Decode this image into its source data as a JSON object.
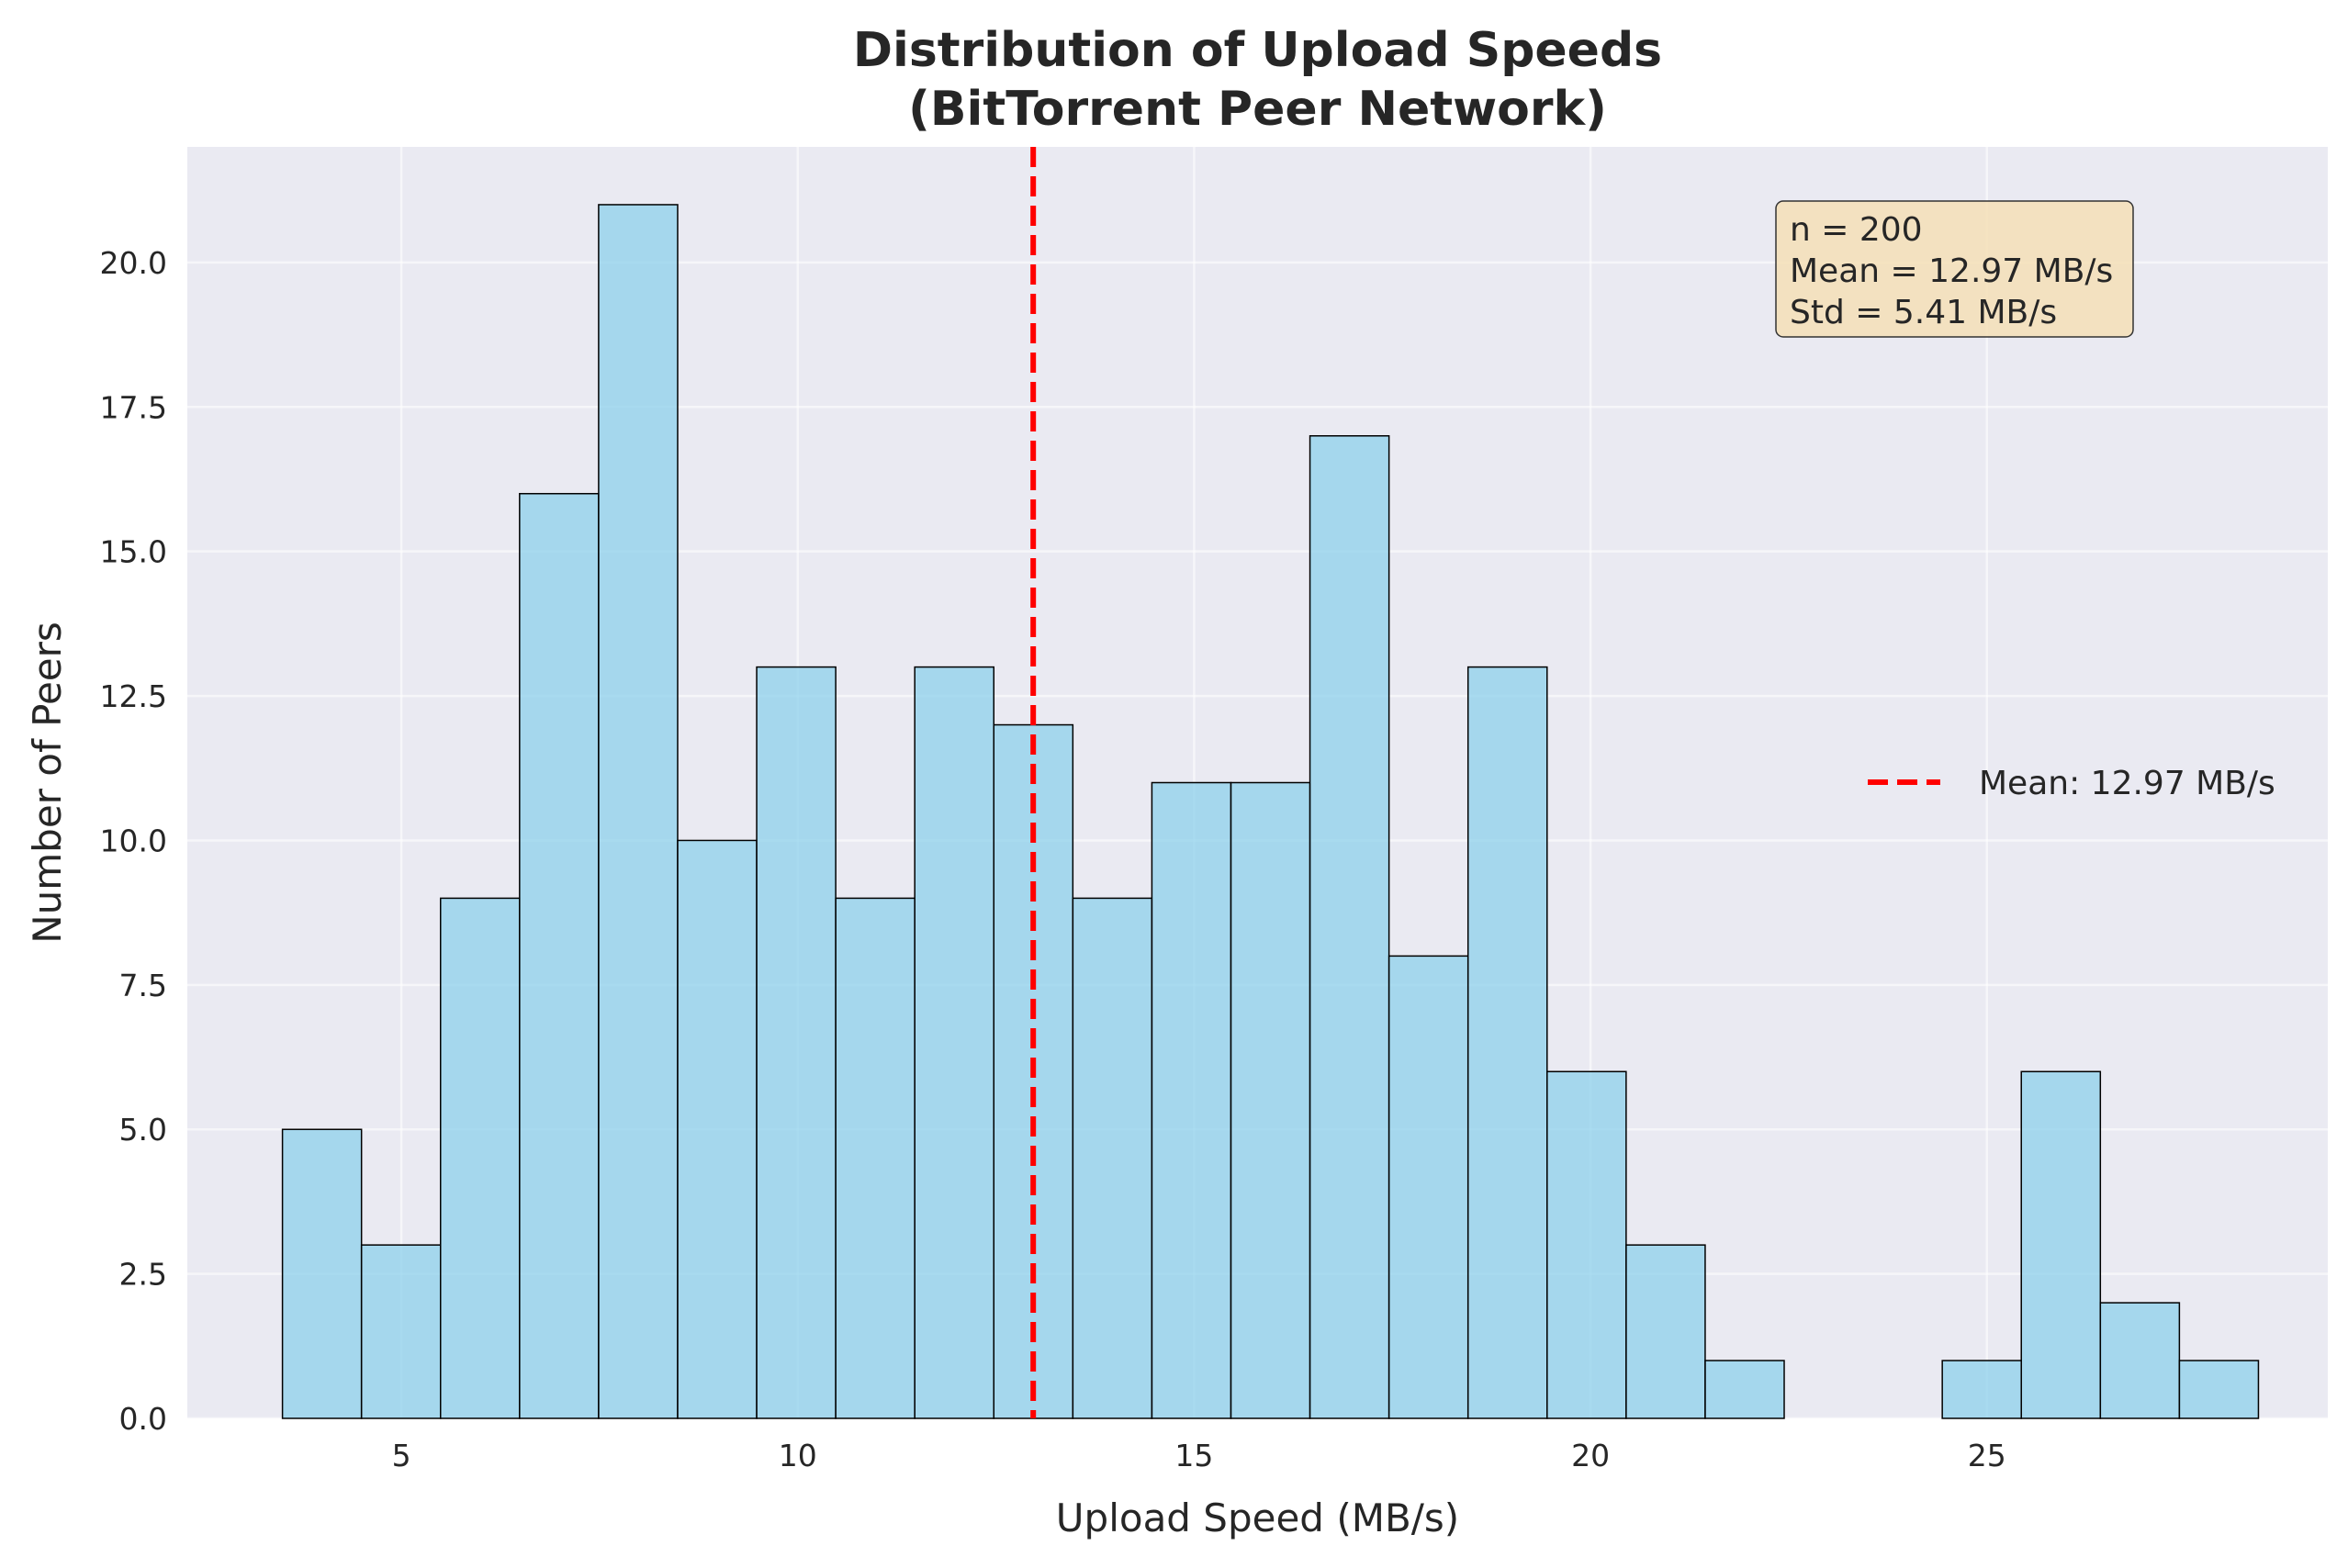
{
  "chart_data": {
    "type": "bar",
    "title_line1": "Distribution of Upload Speeds",
    "title_line2": "(BitTorrent Peer Network)",
    "xlabel": "Upload Speed (MB/s)",
    "ylabel": "Number of Peers",
    "xlim": [
      2.3,
      29.3
    ],
    "ylim": [
      0,
      22
    ],
    "x_ticks": [
      5,
      10,
      15,
      20,
      25
    ],
    "x_tick_labels": [
      "5",
      "10",
      "15",
      "20",
      "25"
    ],
    "y_ticks": [
      0,
      2.5,
      5,
      7.5,
      10,
      12.5,
      15,
      17.5,
      20
    ],
    "y_tick_labels": [
      "0.0",
      "2.5",
      "5.0",
      "7.5",
      "10.0",
      "12.5",
      "15.0",
      "17.5",
      "20.0"
    ],
    "bin_start": 3.5,
    "bin_width": 0.997,
    "values": [
      5,
      3,
      9,
      16,
      21,
      10,
      13,
      9,
      13,
      12,
      9,
      11,
      11,
      17,
      8,
      13,
      6,
      3,
      1,
      0,
      0,
      1,
      6,
      2,
      1
    ],
    "bar_color": "#87CEEB",
    "bar_edge_color": "#000000",
    "background_color": "#EAEAF2",
    "grid": true,
    "mean_line": {
      "x": 12.97,
      "color": "#FF0000",
      "style": "dashed"
    },
    "legend": {
      "placement": "center-right",
      "entries": [
        {
          "label": "Mean: 12.97 MB/s",
          "color": "#FF0000",
          "style": "dashed"
        }
      ]
    },
    "stats_box": {
      "lines": [
        "n = 200",
        "Mean = 12.97 MB/s",
        "Std = 5.41 MB/s"
      ],
      "background_color": "#F5DEB3",
      "placement": "top-right"
    }
  }
}
